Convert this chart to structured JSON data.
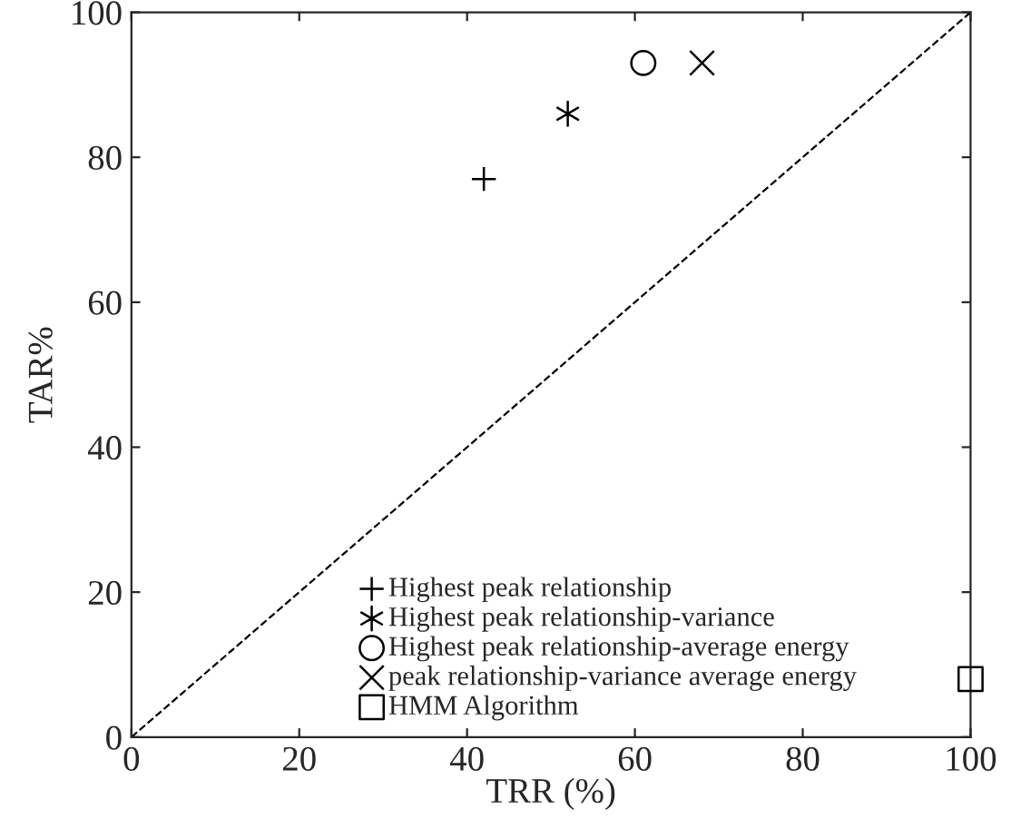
{
  "chart_data": {
    "type": "scatter",
    "xlabel": "TRR (%)",
    "ylabel": "TAR%",
    "xlim": [
      0,
      100
    ],
    "ylim": [
      0,
      100
    ],
    "xticks": [
      0,
      20,
      40,
      60,
      80,
      100
    ],
    "yticks": [
      0,
      20,
      40,
      60,
      80,
      100
    ],
    "grid": false,
    "legend": "bottom",
    "series": [
      {
        "name": "Highest peak relationship",
        "color": "#000000",
        "marker": "plus",
        "x": [
          42
        ],
        "values": [
          77
        ]
      },
      {
        "name": "Highest peak relationship-variance",
        "color": "#000000",
        "x": [
          52
        ],
        "values": [
          86
        ]
      },
      {
        "name": "Highest peak relationship-average energy",
        "color": "#000000",
        "marker": "circle",
        "x": [
          61
        ],
        "values": [
          93
        ]
      },
      {
        "name": "peak relationship-variance average energy",
        "color": "#000000",
        "marker": "cross",
        "x": [
          68
        ],
        "values": [
          93
        ]
      },
      {
        "name": "HMM Algorithm",
        "color": "#000000",
        "marker": "square",
        "x": [
          100
        ],
        "values": [
          8
        ]
      },
      {
        "type": "line",
        "color": "#000000",
        "line_style": "dashed",
        "marker": "none",
        "x": [
          0,
          100
        ],
        "values": [
          0,
          100
        ]
      }
    ]
  }
}
